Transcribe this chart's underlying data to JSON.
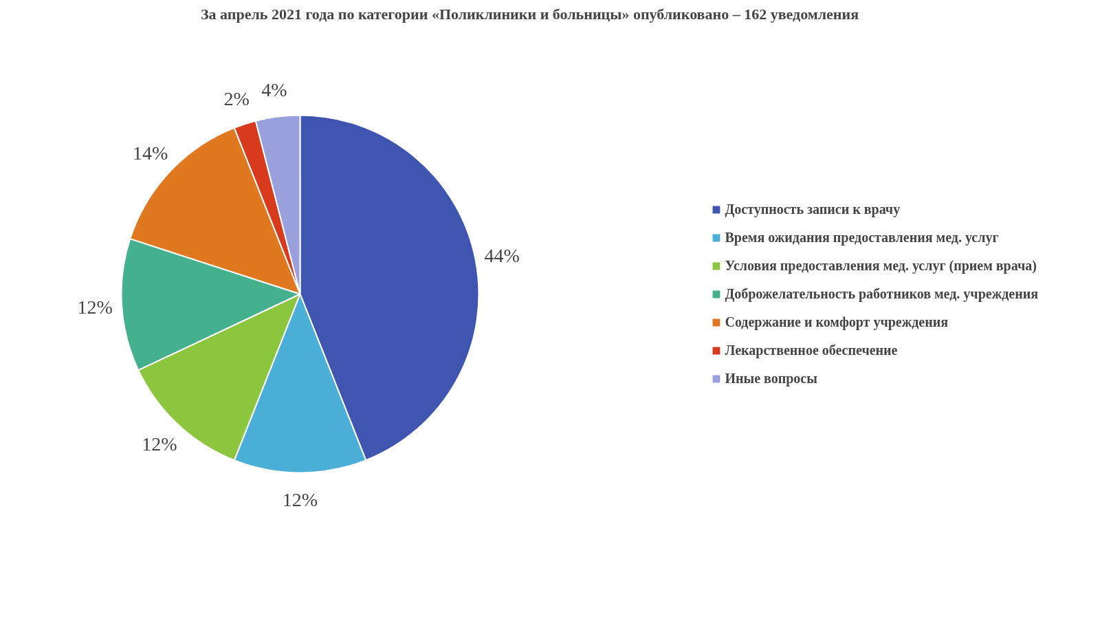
{
  "chart_data": {
    "type": "pie",
    "title": "За апрель 2021 года по категории «Поликлиники и больницы» опубликовано – 162 уведомления",
    "categories": [
      "Доступность записи к врачу",
      "Время ожидания предоставления мед. услуг",
      "Условия предоставления мед. услуг (прием врача)",
      "Доброжелательность работников мед. учреждения",
      "Содержание и комфорт учреждения",
      "Лекарственное обеспечение",
      "Иные вопросы"
    ],
    "values": [
      44,
      12,
      12,
      12,
      14,
      2,
      4
    ],
    "colors": [
      "#3f55b0",
      "#4aaed6",
      "#8cc63f",
      "#45b08e",
      "#e07820",
      "#d83a1e",
      "#9aa0dc"
    ],
    "value_labels": [
      "44%",
      "12%",
      "12%",
      "12%",
      "14%",
      "2%",
      "4%"
    ],
    "legend": "right"
  }
}
